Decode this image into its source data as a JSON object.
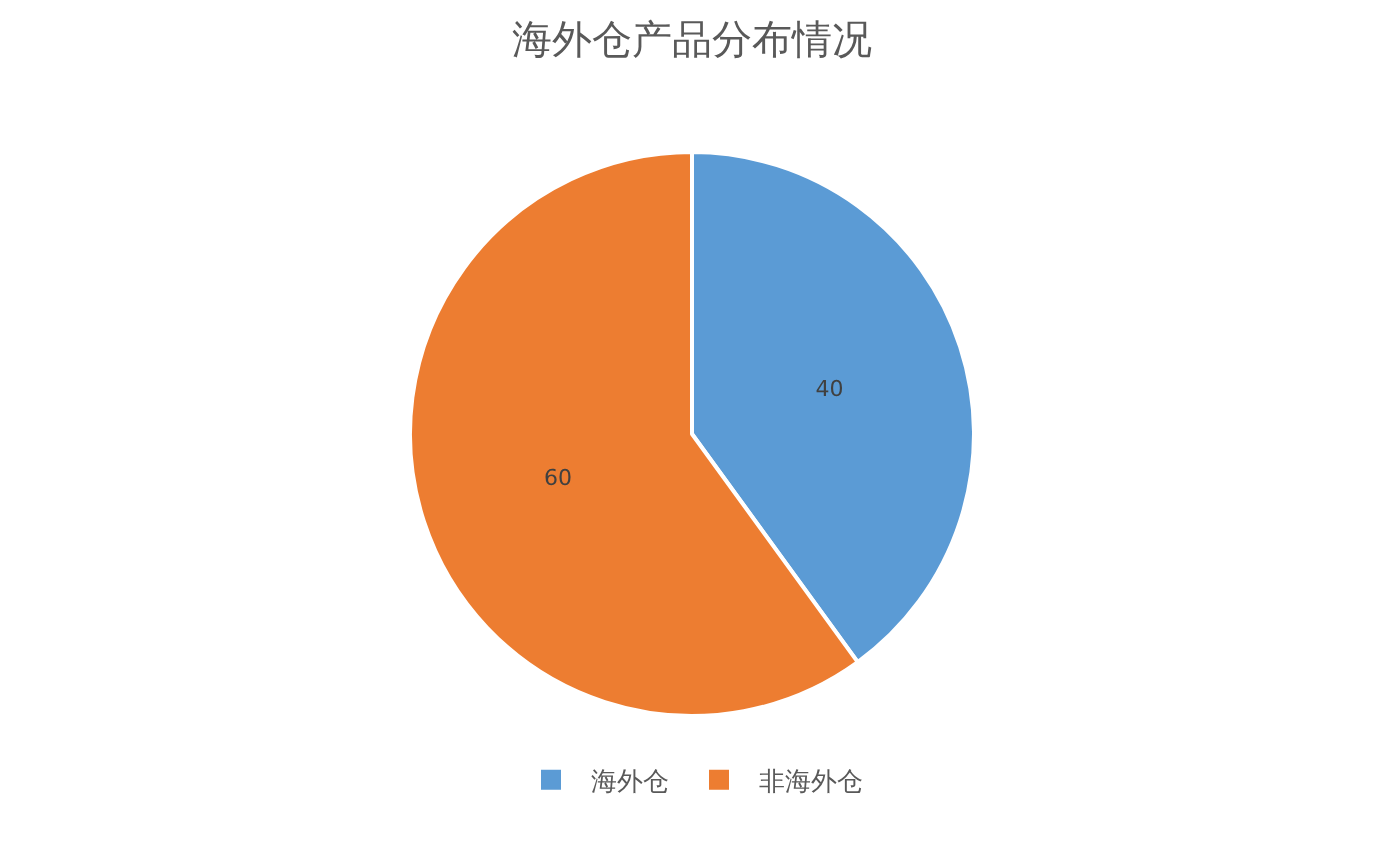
{
  "chart_data": {
    "type": "pie",
    "title": "海外仓产品分布情况",
    "categories": [
      "海外仓",
      "非海外仓"
    ],
    "values": [
      40,
      60
    ],
    "colors": [
      "#5b9bd5",
      "#ed7d31"
    ],
    "data_labels": true,
    "legend": "bottom"
  }
}
